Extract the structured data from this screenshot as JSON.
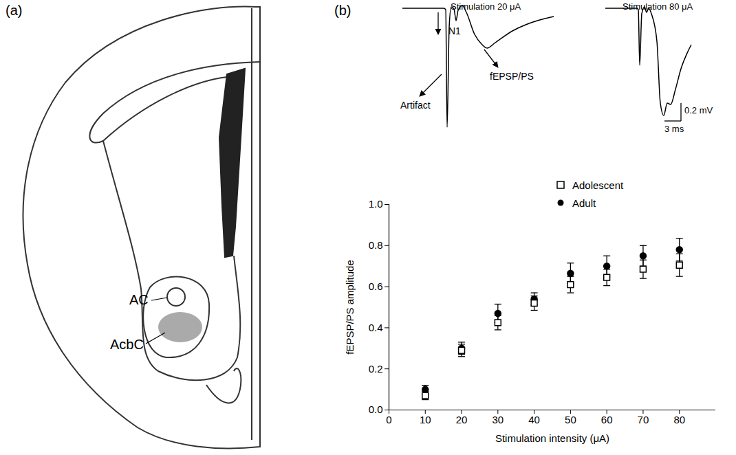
{
  "panel_labels": [
    "(a)",
    "(b)"
  ],
  "diagram": {
    "labels": [
      "AC",
      "AcbC"
    ]
  },
  "traces": [
    {
      "title": "Stimulation 20 μA",
      "annotations": [
        "Artifact",
        "N1",
        "fEPSP/PS"
      ]
    },
    {
      "title": "Stimulation 80 μA"
    }
  ],
  "scale_bar": {
    "y_label": "0.2 mV",
    "x_label": "3 ms"
  },
  "chart_data": {
    "type": "scatter",
    "x_label": "Stimulation intensity (μA)",
    "y_label": "fEPSP/PS amplitude",
    "x": [
      10,
      20,
      30,
      40,
      50,
      60,
      70,
      80
    ],
    "xlim": [
      0,
      90
    ],
    "xticks": [
      0,
      10,
      20,
      30,
      40,
      50,
      60,
      70,
      80
    ],
    "ylim": [
      0,
      1
    ],
    "yticks": [
      {
        "value": 0,
        "label": "0.0"
      },
      {
        "value": 0.2,
        "label": "0.2"
      },
      {
        "value": 0.4,
        "label": "0.4"
      },
      {
        "value": 0.6,
        "label": "0.6"
      },
      {
        "value": 0.8,
        "label": "0.8"
      },
      {
        "value": 1,
        "label": "1.0"
      }
    ],
    "grid": false,
    "legend": "top-right",
    "series": [
      {
        "name": "Adolescent",
        "color": "#000000",
        "marker": "square",
        "values": [
          0.07,
          0.29,
          0.425,
          0.52,
          0.61,
          0.645,
          0.685,
          0.705
        ],
        "errors": [
          0.02,
          0.03,
          0.035,
          0.035,
          0.04,
          0.04,
          0.045,
          0.055
        ]
      },
      {
        "name": "Adult",
        "color": "#000000",
        "marker": "circle",
        "values": [
          0.1,
          0.3,
          0.47,
          0.54,
          0.665,
          0.7,
          0.75,
          0.78
        ],
        "errors": [
          0.02,
          0.03,
          0.045,
          0.03,
          0.05,
          0.05,
          0.05,
          0.055
        ]
      }
    ]
  }
}
